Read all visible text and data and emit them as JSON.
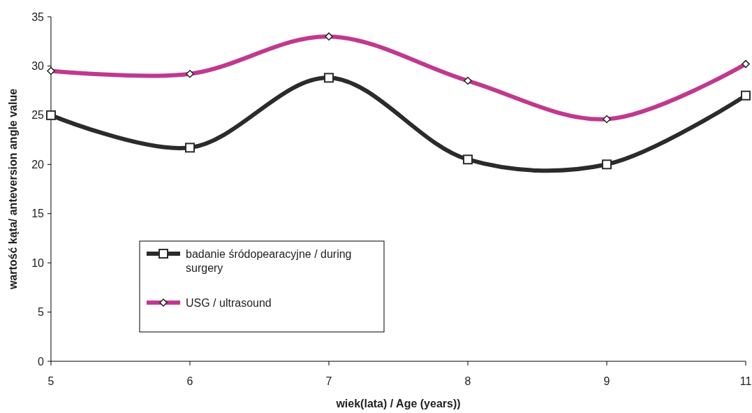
{
  "chart_data": {
    "type": "line",
    "xlabel": "wiek(lata) / Age (years))",
    "ylabel": "wartość kąta/ anteversion angle value",
    "categories": [
      "5",
      "6",
      "7",
      "8",
      "9",
      "11"
    ],
    "series": [
      {
        "name": "badanie śródopearacyjne / during surgery",
        "color": "#2b2b2b",
        "marker": "square",
        "values": [
          25,
          21.7,
          28.8,
          20.5,
          20,
          27
        ]
      },
      {
        "name": "USG / ultrasound",
        "color": "#c0398e",
        "marker": "diamond",
        "values": [
          29.5,
          29.2,
          33,
          28.5,
          24.6,
          30.2
        ]
      }
    ],
    "ylim": [
      0,
      35
    ],
    "yticks": [
      0,
      5,
      10,
      15,
      20,
      25,
      30,
      35
    ],
    "grid": false,
    "legend": "bottom left",
    "line_style": "solid"
  }
}
